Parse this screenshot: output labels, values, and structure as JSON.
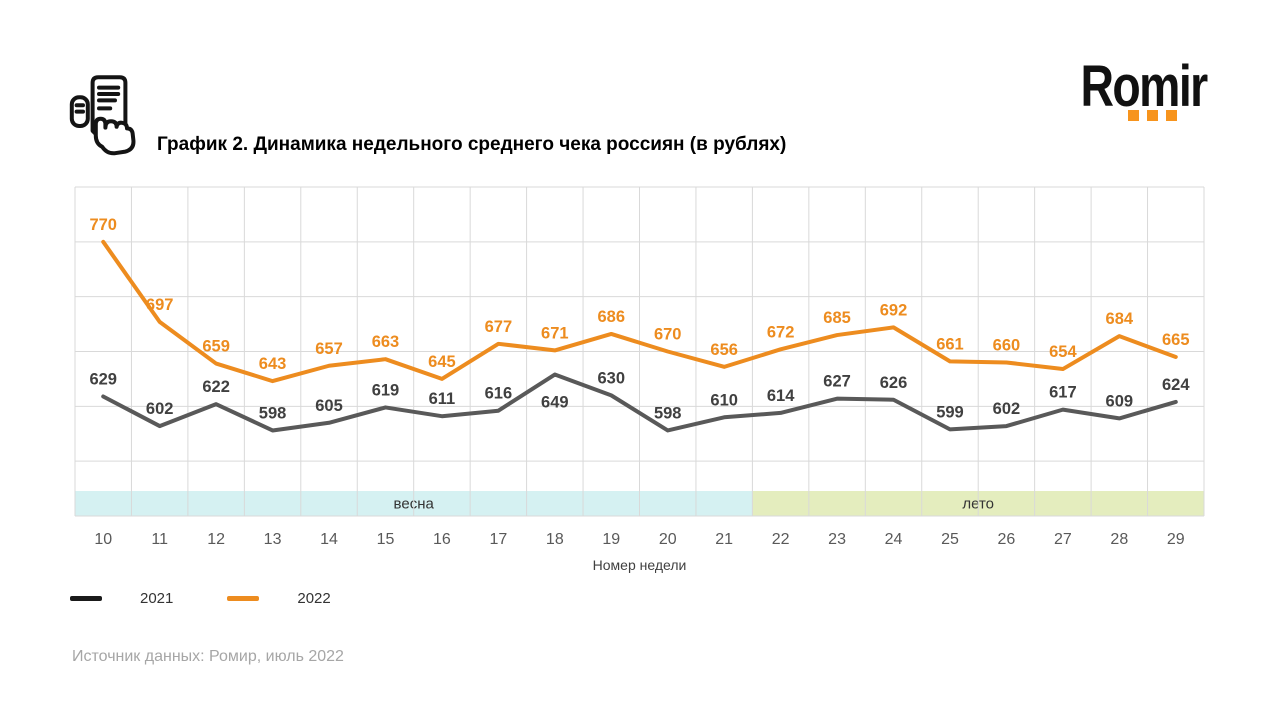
{
  "header": {
    "title": "График 2. Динамика недельного среднего чека россиян (в рублях)",
    "icon": "receipt-in-hand-icon",
    "logo": {
      "text": "Romir",
      "dots_count": 3,
      "dots_color": "#F7941D",
      "text_color": "#111111"
    }
  },
  "chart_data": {
    "type": "line",
    "title": "График 2. Динамика недельного среднего чека россиян (в рублях)",
    "x": [
      10,
      11,
      12,
      13,
      14,
      15,
      16,
      17,
      18,
      19,
      20,
      21,
      22,
      23,
      24,
      25,
      26,
      27,
      28,
      29
    ],
    "xlabel": "Номер недели",
    "ylim": [
      520,
      820
    ],
    "grid_step": 50,
    "grid": true,
    "y_axis_labels_visible": false,
    "legend_position": "bottom-left",
    "series": [
      {
        "name": "2021",
        "color": "#595959",
        "label_color": "#404040",
        "legend_color": "#1A1A1A",
        "values": [
          629,
          602,
          622,
          598,
          605,
          619,
          611,
          616,
          649,
          630,
          598,
          610,
          614,
          627,
          626,
          599,
          602,
          617,
          609,
          624
        ],
        "label_dy": {
          "8": 33
        }
      },
      {
        "name": "2022",
        "color": "#ED8C1F",
        "label_color": "#ED8C1F",
        "legend_color": "#ED8C1F",
        "values": [
          770,
          697,
          659,
          643,
          657,
          663,
          645,
          677,
          671,
          686,
          670,
          656,
          672,
          685,
          692,
          661,
          660,
          654,
          684,
          665
        ]
      }
    ],
    "bands": [
      {
        "label": "весна",
        "from_week": 10,
        "to_week": 21,
        "color": "#D5F1F2"
      },
      {
        "label": "лето",
        "from_week": 22,
        "to_week": 29,
        "color": "#E4EDBE"
      }
    ]
  },
  "footer": {
    "source": "Источник данных: Ромир, июль 2022"
  }
}
